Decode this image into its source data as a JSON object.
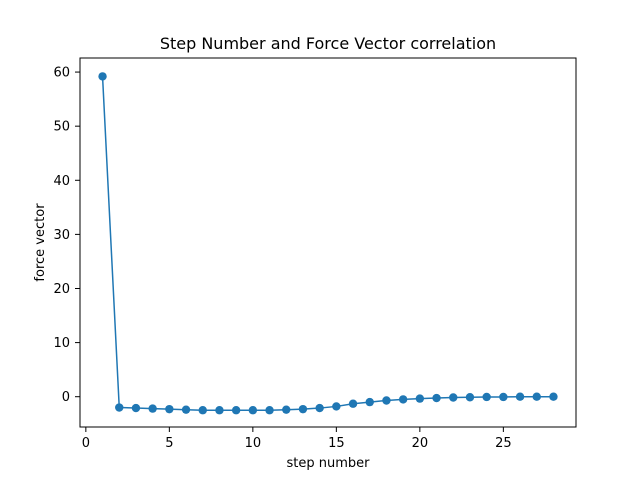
{
  "chart_data": {
    "type": "line",
    "title": "Step Number and Force Vector correlation",
    "xlabel": "step number",
    "ylabel": "force vector",
    "xlim": [
      -0.35,
      29.35
    ],
    "ylim": [
      -5.6,
      62.6
    ],
    "xticks": [
      0,
      5,
      10,
      15,
      20,
      25
    ],
    "yticks": [
      0,
      10,
      20,
      30,
      40,
      50,
      60
    ],
    "grid": false,
    "legend": false,
    "marker": "circle",
    "color": "#1f77b4",
    "series": [
      {
        "x": [
          1,
          2,
          3,
          4,
          5,
          6,
          7,
          8,
          9,
          10,
          11,
          12,
          13,
          14,
          15,
          16,
          17,
          18,
          19,
          20,
          21,
          22,
          23,
          24,
          25,
          26,
          27,
          28
        ],
        "y": [
          59.2,
          -2.0,
          -2.1,
          -2.2,
          -2.3,
          -2.4,
          -2.5,
          -2.5,
          -2.5,
          -2.5,
          -2.5,
          -2.4,
          -2.3,
          -2.1,
          -1.8,
          -1.3,
          -1.0,
          -0.7,
          -0.5,
          -0.35,
          -0.25,
          -0.15,
          -0.1,
          -0.05,
          -0.05,
          0.0,
          0.0,
          0.0
        ]
      }
    ]
  }
}
